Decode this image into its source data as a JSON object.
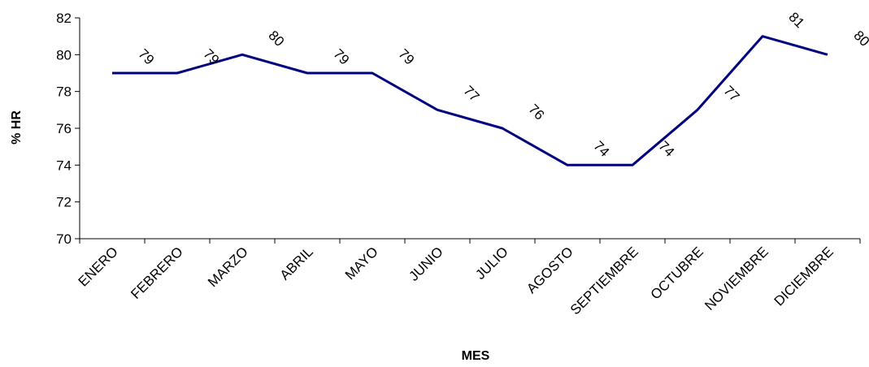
{
  "chart_data": {
    "type": "line",
    "title": "",
    "xlabel": "MES",
    "ylabel": "% HR",
    "categories": [
      "ENERO",
      "FEBRERO",
      "MARZO",
      "ABRIL",
      "MAYO",
      "JUNIO",
      "JULIO",
      "AGOSTO",
      "SEPTIEMBRE",
      "OCTUBRE",
      "NOVIEMBRE",
      "DICIEMBRE"
    ],
    "series": [
      {
        "values": [
          79,
          79,
          80,
          79,
          79,
          77,
          76,
          74,
          74,
          77,
          81,
          80
        ]
      }
    ],
    "data_labels": [
      "79",
      "79",
      "80",
      "79",
      "79",
      "77",
      "76",
      "74",
      "74",
      "77",
      "81",
      "80"
    ],
    "ylim": [
      70,
      82
    ],
    "yticks": [
      "70",
      "72",
      "74",
      "76",
      "78",
      "80",
      "82"
    ],
    "grid": false,
    "legend": "none",
    "line_color": "#000080"
  }
}
